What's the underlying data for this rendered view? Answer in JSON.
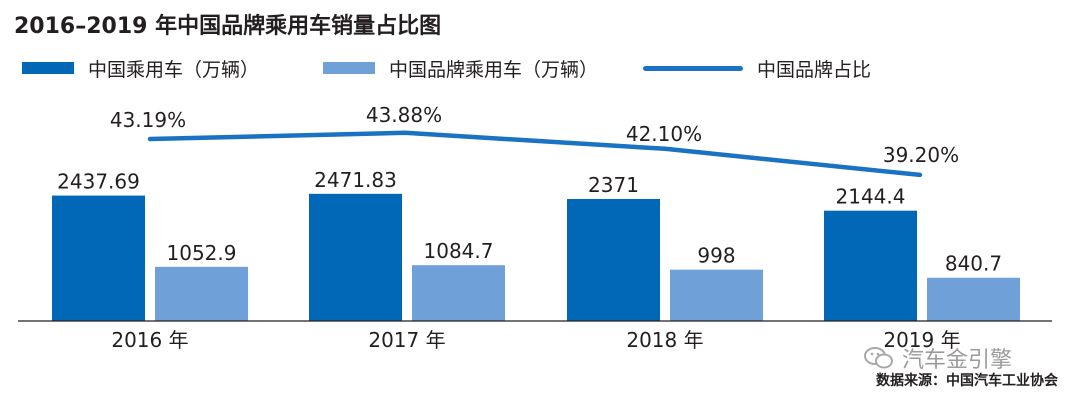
{
  "title": "2016–2019 年中国品牌乘用车销量占比图",
  "legend": {
    "passenger": "中国乘用车（万辆）",
    "brand": "中国品牌乘用车（万辆）",
    "share": "中国品牌占比"
  },
  "source": "数据来源：中国汽车工业协会",
  "watermark": "汽车金引擎",
  "colors": {
    "passenger": "#0068b7",
    "brand": "#6fa1d8",
    "share": "#1a73c2"
  },
  "chart_data": {
    "type": "bar",
    "categories": [
      "2016 年",
      "2017 年",
      "2018 年",
      "2019 年"
    ],
    "series": [
      {
        "name": "中国乘用车（万辆）",
        "values": [
          2437.69,
          2471.83,
          2371,
          2144.4
        ],
        "labels": [
          "2437.69",
          "2471.83",
          "2371",
          "2144.4"
        ]
      },
      {
        "name": "中国品牌乘用车（万辆）",
        "values": [
          1052.9,
          1084.7,
          998,
          840.7
        ],
        "labels": [
          "1052.9",
          "1084.7",
          "998",
          "840.7"
        ]
      }
    ],
    "line_series": {
      "name": "中国品牌占比",
      "values": [
        43.19,
        43.88,
        42.1,
        39.2
      ],
      "labels": [
        "43.19%",
        "43.88%",
        "42.10%",
        "39.20%"
      ]
    },
    "title": "2016–2019 年中国品牌乘用车销量占比图",
    "legend_position": "top",
    "grid": false
  }
}
